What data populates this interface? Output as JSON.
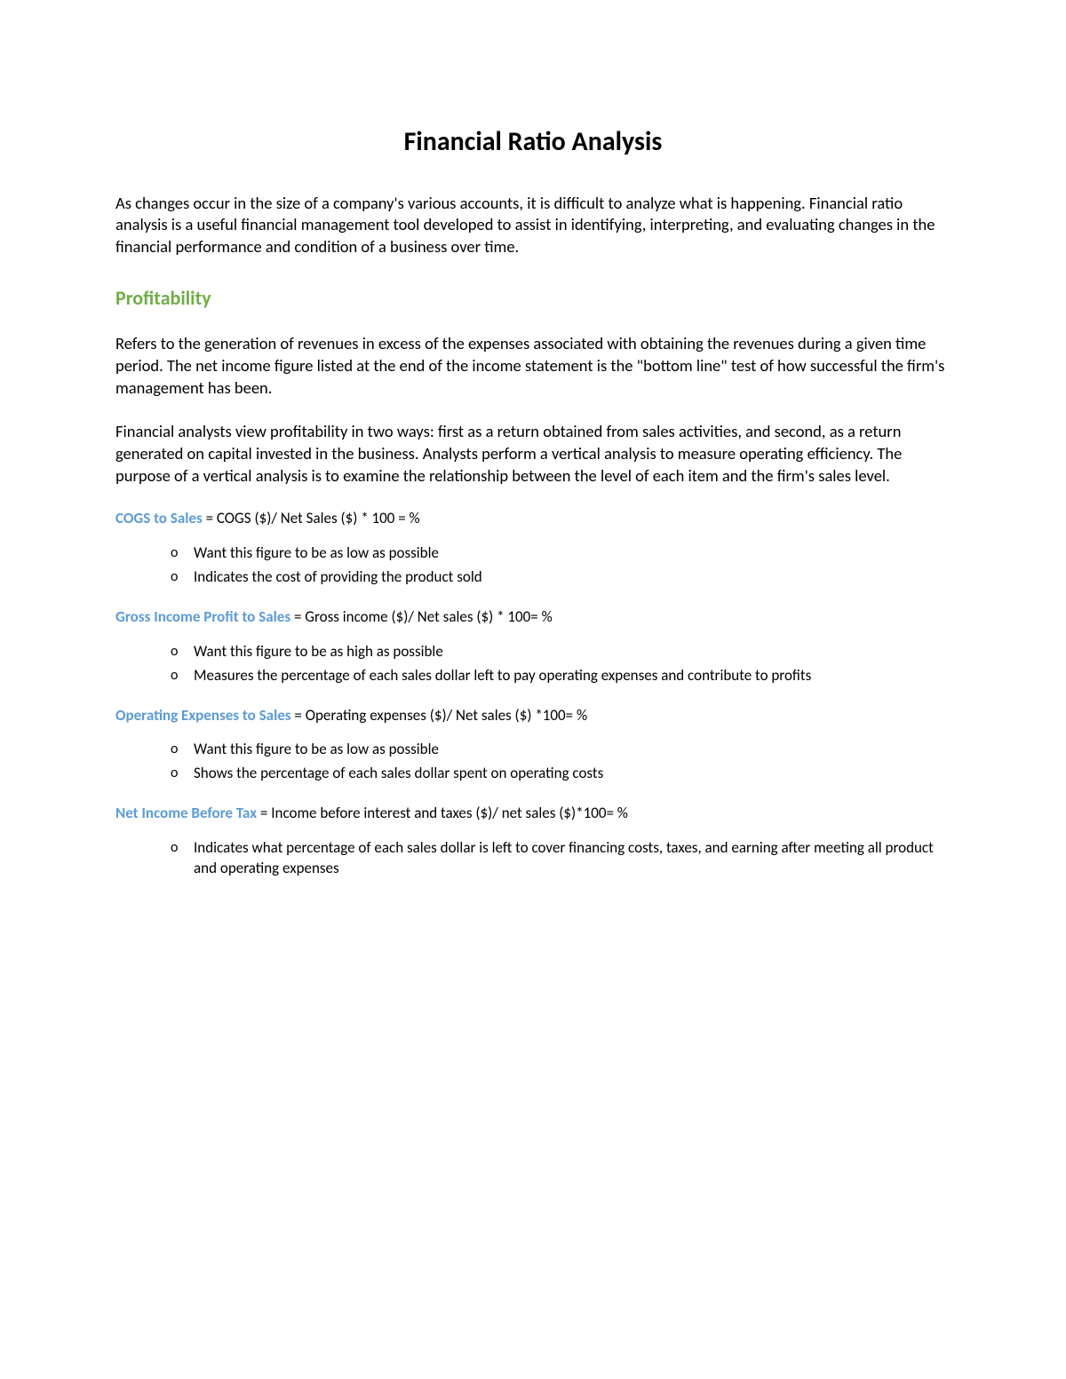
{
  "title": "Financial Ratio Analysis",
  "intro": "As changes occur in the size of a company's various accounts, it is difficult to analyze what is happening. Financial ratio analysis is a useful financial management tool developed to assist in identifying, interpreting, and evaluating changes in the financial performance and condition of a business over time.",
  "section": {
    "heading": "Profitability",
    "para1": "Refers to the generation of revenues in excess of the expenses associated with obtaining the revenues during a given time period. The net income figure listed at the end of the income statement is the \"bottom line\" test of how successful the firm's management has been.",
    "para2": "Financial analysts view profitability in two ways: first as a return obtained from sales activities, and second, as a return generated on capital invested in the business. Analysts perform a vertical analysis to measure operating efficiency. The purpose of a vertical analysis is to examine the relationship between the level of each item and the firm's sales level."
  },
  "ratios": [
    {
      "name": "COGS to Sales",
      "formula": " = COGS ($)/ Net Sales ($) * 100 = %",
      "bullets": [
        "Want this figure to be as low as possible",
        "Indicates the cost of providing the product sold"
      ]
    },
    {
      "name": "Gross Income Profit to Sales",
      "formula": " = Gross income ($)/ Net sales ($) * 100= %",
      "bullets": [
        "Want this figure to be as high as possible",
        "Measures the percentage of each sales dollar left to pay operating expenses and contribute to profits"
      ]
    },
    {
      "name": "Operating Expenses to Sales",
      "formula": " = Operating expenses ($)/ Net sales ($) *100= %",
      "bullets": [
        "Want this figure to be as low as possible",
        "Shows the percentage of each sales dollar spent on operating costs"
      ]
    },
    {
      "name": "Net Income Before Tax",
      "formula": " = Income before interest and taxes ($)/ net sales ($)*100= %",
      "bullets": [
        "Indicates what percentage of each sales dollar is left to cover financing costs, taxes, and earning after meeting all product and operating expenses"
      ]
    }
  ],
  "colors": {
    "heading_green": "#70ad47",
    "ratio_blue": "#5b9bd5",
    "text": "#000000",
    "background": "#ffffff"
  }
}
